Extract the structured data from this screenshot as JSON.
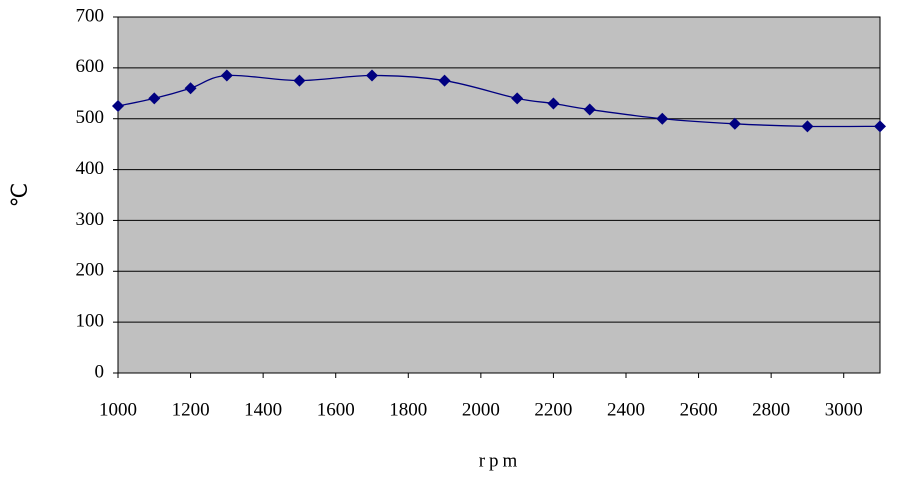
{
  "chart_data": {
    "type": "line",
    "x_label": "rpm",
    "y_label": "℃",
    "x": [
      1000,
      1100,
      1200,
      1300,
      1500,
      1700,
      1900,
      2100,
      2200,
      2300,
      2500,
      2700,
      2900,
      3100
    ],
    "series": [
      {
        "color": "#000080",
        "values": [
          525,
          540,
          560,
          585,
          575,
          585,
          575,
          540,
          530,
          518,
          500,
          490,
          485,
          485
        ]
      }
    ],
    "xlim": [
      1000,
      3100
    ],
    "xticks": [
      1000,
      1200,
      1400,
      1600,
      1800,
      2000,
      2200,
      2400,
      2600,
      2800,
      3000
    ],
    "ylim": [
      0,
      700
    ],
    "yticks": [
      0,
      100,
      200,
      300,
      400,
      500,
      600,
      700
    ],
    "grid": true,
    "smooth": true,
    "marker": "diamond"
  }
}
